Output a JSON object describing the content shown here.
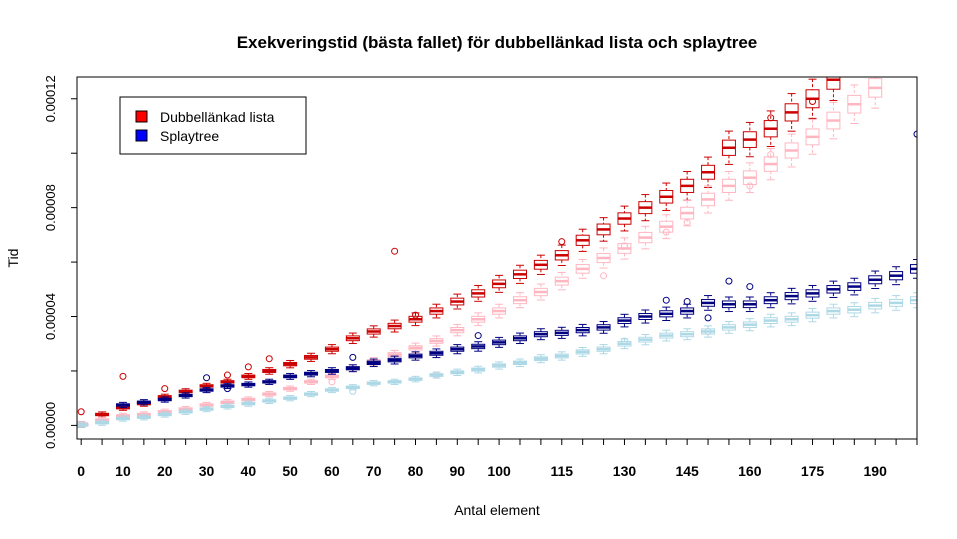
{
  "chart_data": {
    "type": "box",
    "title": "Exekveringstid (bästa fallet) för dubbellänkad lista och splaytree",
    "xlabel": "Antal element",
    "ylabel": "Tid",
    "xlim": [
      -1,
      200
    ],
    "ylim": [
      -5e-06,
      0.000128
    ],
    "x_ticks": [
      0,
      10,
      20,
      30,
      40,
      50,
      60,
      70,
      80,
      90,
      100,
      115,
      130,
      145,
      160,
      175,
      190
    ],
    "y_ticks": [
      {
        "value": 0,
        "label": "0.00000"
      },
      {
        "value": 4e-05,
        "label": "0.00004"
      },
      {
        "value": 8e-05,
        "label": "0.00008"
      },
      {
        "value": 0.00012,
        "label": "0.00012"
      }
    ],
    "legend": {
      "placement": "top-left",
      "entries": [
        {
          "label": "Dubbellänkad lista",
          "color": "#ff0000"
        },
        {
          "label": "Splaytree",
          "color": "#0000ff"
        }
      ]
    },
    "series": [
      {
        "name": "Dubbellänkad lista",
        "color": "#cc0000",
        "x": [
          0,
          5,
          10,
          15,
          20,
          25,
          30,
          35,
          40,
          45,
          50,
          55,
          60,
          65,
          70,
          75,
          80,
          85,
          90,
          95,
          100,
          105,
          110,
          115,
          120,
          125,
          130,
          135,
          140,
          145,
          150,
          155,
          160,
          165,
          170,
          175,
          180
        ],
        "y": [
          2e-07,
          4e-06,
          6.5e-06,
          8e-06,
          1.05e-05,
          1.25e-05,
          1.45e-05,
          1.6e-05,
          1.8e-05,
          2e-05,
          2.25e-05,
          2.5e-05,
          2.8e-05,
          3.2e-05,
          3.45e-05,
          3.65e-05,
          3.9e-05,
          4.2e-05,
          4.55e-05,
          4.85e-05,
          5.2e-05,
          5.55e-05,
          5.9e-05,
          6.25e-05,
          6.8e-05,
          7.2e-05,
          7.6e-05,
          8e-05,
          8.4e-05,
          8.8e-05,
          9.3e-05,
          0.000102,
          0.000105,
          0.000109,
          0.000115,
          0.00012,
          0.000127
        ],
        "outliers": [
          [
            0,
            5e-06
          ],
          [
            10,
            1.8e-05
          ],
          [
            20,
            1.35e-05
          ],
          [
            35,
            1.85e-05
          ],
          [
            40,
            2.15e-05
          ],
          [
            45,
            2.45e-05
          ],
          [
            75,
            6.4e-05
          ],
          [
            80,
            4.05e-05
          ],
          [
            115,
            6.75e-05
          ],
          [
            175,
            0.000119
          ],
          [
            165,
            0.000113
          ]
        ]
      },
      {
        "name": "",
        "color": "#ffb6c1",
        "x": [
          0,
          5,
          10,
          15,
          20,
          25,
          30,
          35,
          40,
          45,
          50,
          55,
          60,
          65,
          70,
          75,
          80,
          85,
          90,
          95,
          100,
          105,
          110,
          115,
          120,
          125,
          130,
          135,
          140,
          145,
          150,
          155,
          160,
          165,
          170,
          175,
          180,
          185,
          190
        ],
        "y": [
          5e-07,
          2e-06,
          3.5e-06,
          4e-06,
          5e-06,
          6e-06,
          7.5e-06,
          8.5e-06,
          9.5e-06,
          1.15e-05,
          1.35e-05,
          1.6e-05,
          1.8e-05,
          2.1e-05,
          2.35e-05,
          2.6e-05,
          2.85e-05,
          3.1e-05,
          3.5e-05,
          3.9e-05,
          4.2e-05,
          4.6e-05,
          4.9e-05,
          5.3e-05,
          5.75e-05,
          6.15e-05,
          6.5e-05,
          6.9e-05,
          7.3e-05,
          7.8e-05,
          8.3e-05,
          8.8e-05,
          9.1e-05,
          9.6e-05,
          0.000101,
          0.000106,
          0.000112,
          0.000118,
          0.000124
        ],
        "outliers": [
          [
            60,
            1.6e-05
          ],
          [
            85,
            1.85e-05
          ],
          [
            125,
            5.5e-05
          ],
          [
            130,
            6.6e-05
          ],
          [
            140,
            7.1e-05
          ],
          [
            145,
            7.45e-05
          ],
          [
            160,
            8.8e-05
          ],
          [
            165,
            9.95e-05
          ]
        ]
      },
      {
        "name": "Splaytree",
        "color": "#000080",
        "x": [
          10,
          15,
          20,
          25,
          30,
          35,
          40,
          45,
          50,
          55,
          60,
          65,
          70,
          75,
          80,
          85,
          90,
          95,
          100,
          105,
          110,
          115,
          120,
          125,
          130,
          135,
          140,
          145,
          150,
          155,
          160,
          165,
          170,
          175,
          180,
          185,
          190,
          195,
          200
        ],
        "y": [
          7.5e-06,
          8.5e-06,
          9.5e-06,
          1.1e-05,
          1.3e-05,
          1.45e-05,
          1.5e-05,
          1.6e-05,
          1.8e-05,
          1.9e-05,
          2e-05,
          2.1e-05,
          2.3e-05,
          2.4e-05,
          2.55e-05,
          2.65e-05,
          2.8e-05,
          2.9e-05,
          3.05e-05,
          3.2e-05,
          3.35e-05,
          3.4e-05,
          3.5e-05,
          3.6e-05,
          3.85e-05,
          4e-05,
          4.1e-05,
          4.2e-05,
          4.5e-05,
          4.45e-05,
          4.45e-05,
          4.6e-05,
          4.75e-05,
          4.85e-05,
          5e-05,
          5.1e-05,
          5.35e-05,
          5.5e-05,
          5.75e-05
        ],
        "outliers": [
          [
            30,
            1.75e-05
          ],
          [
            35,
            1.35e-05
          ],
          [
            65,
            2.5e-05
          ],
          [
            95,
            3.3e-05
          ],
          [
            140,
            4.6e-05
          ],
          [
            145,
            4.55e-05
          ],
          [
            150,
            3.95e-05
          ],
          [
            155,
            5.3e-05
          ],
          [
            160,
            5.1e-05
          ],
          [
            200,
            0.000107
          ]
        ]
      },
      {
        "name": "",
        "color": "#add8e6",
        "x": [
          0,
          5,
          10,
          15,
          20,
          25,
          30,
          35,
          40,
          45,
          50,
          55,
          60,
          65,
          70,
          75,
          80,
          85,
          90,
          95,
          100,
          105,
          110,
          115,
          120,
          125,
          130,
          135,
          140,
          145,
          150,
          155,
          160,
          165,
          170,
          175,
          180,
          185,
          190,
          195,
          200
        ],
        "y": [
          2e-07,
          1e-06,
          2.5e-06,
          3e-06,
          4e-06,
          5e-06,
          6e-06,
          7e-06,
          8e-06,
          9e-06,
          1e-05,
          1.15e-05,
          1.3e-05,
          1.4e-05,
          1.55e-05,
          1.6e-05,
          1.7e-05,
          1.85e-05,
          1.95e-05,
          2.05e-05,
          2.2e-05,
          2.3e-05,
          2.45e-05,
          2.55e-05,
          2.7e-05,
          2.8e-05,
          3e-05,
          3.15e-05,
          3.3e-05,
          3.35e-05,
          3.45e-05,
          3.6e-05,
          3.7e-05,
          3.85e-05,
          3.9e-05,
          4.05e-05,
          4.2e-05,
          4.25e-05,
          4.4e-05,
          4.5e-05,
          4.6e-05
        ],
        "outliers": [
          [
            65,
            1.25e-05
          ],
          [
            130,
            3.1e-05
          ],
          [
            150,
            3.45e-05
          ]
        ]
      }
    ]
  }
}
